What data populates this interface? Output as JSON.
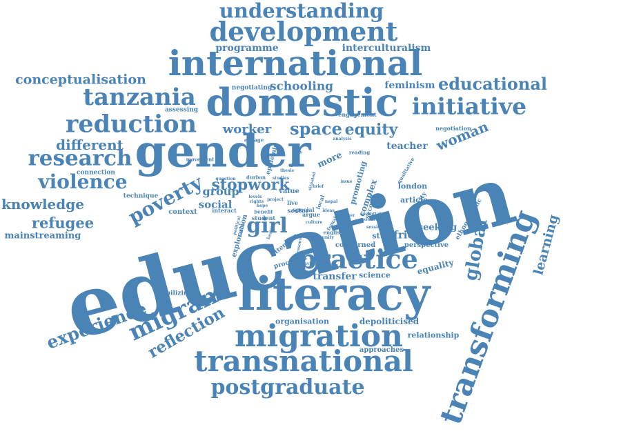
{
  "style": {
    "word_color": "#4a83b5",
    "background": "#ffffff"
  },
  "words": [
    "understanding",
    "development",
    "programme",
    "interculturalism",
    "international",
    "conceptualisation",
    "negotiating",
    "schooling",
    "feminism",
    "educational",
    "tanzania",
    "domestic",
    "initiative",
    "assessing",
    "reduction",
    "engagement",
    "negotiation",
    "worker",
    "space",
    "equity",
    "woman",
    "gender",
    "different",
    "teacher",
    "research",
    "education",
    "violence",
    "poverty",
    "stopwork",
    "knowledge",
    "group",
    "girl",
    "refugee",
    "mainstreaming",
    "practice",
    "literacy",
    "migrant",
    "global",
    "experience",
    "mobilizing",
    "learning",
    "reflection",
    "migration",
    "transforming",
    "transnational",
    "postgraduate",
    "organisation",
    "depoliticised",
    "relationship",
    "approaches",
    "processes",
    "transfer",
    "science",
    "equality",
    "concerned",
    "perspective",
    "seeking",
    "africa",
    "study",
    "more",
    "london",
    "article",
    "context",
    "social",
    "technique",
    "connection",
    "movement",
    "exploration",
    "attention",
    "ethnographic",
    "solidarity",
    "complex",
    "promoting",
    "special",
    "value",
    "epidemic",
    "student",
    "sector",
    "interact",
    "reading",
    "durban",
    "english",
    "second",
    "qualitative",
    "engage",
    "writing",
    "benefit",
    "hope",
    "nepal",
    "female",
    "analysis",
    "studies",
    "thesis",
    "resource",
    "live",
    "argue",
    "sessions",
    "essential",
    "question",
    "political",
    "local",
    "brief",
    "lessons",
    "navigate",
    "situated",
    "levels",
    "issue",
    "skills",
    "project",
    "community",
    "methods",
    "health",
    "culture",
    "rights",
    "power",
    "ideas"
  ]
}
